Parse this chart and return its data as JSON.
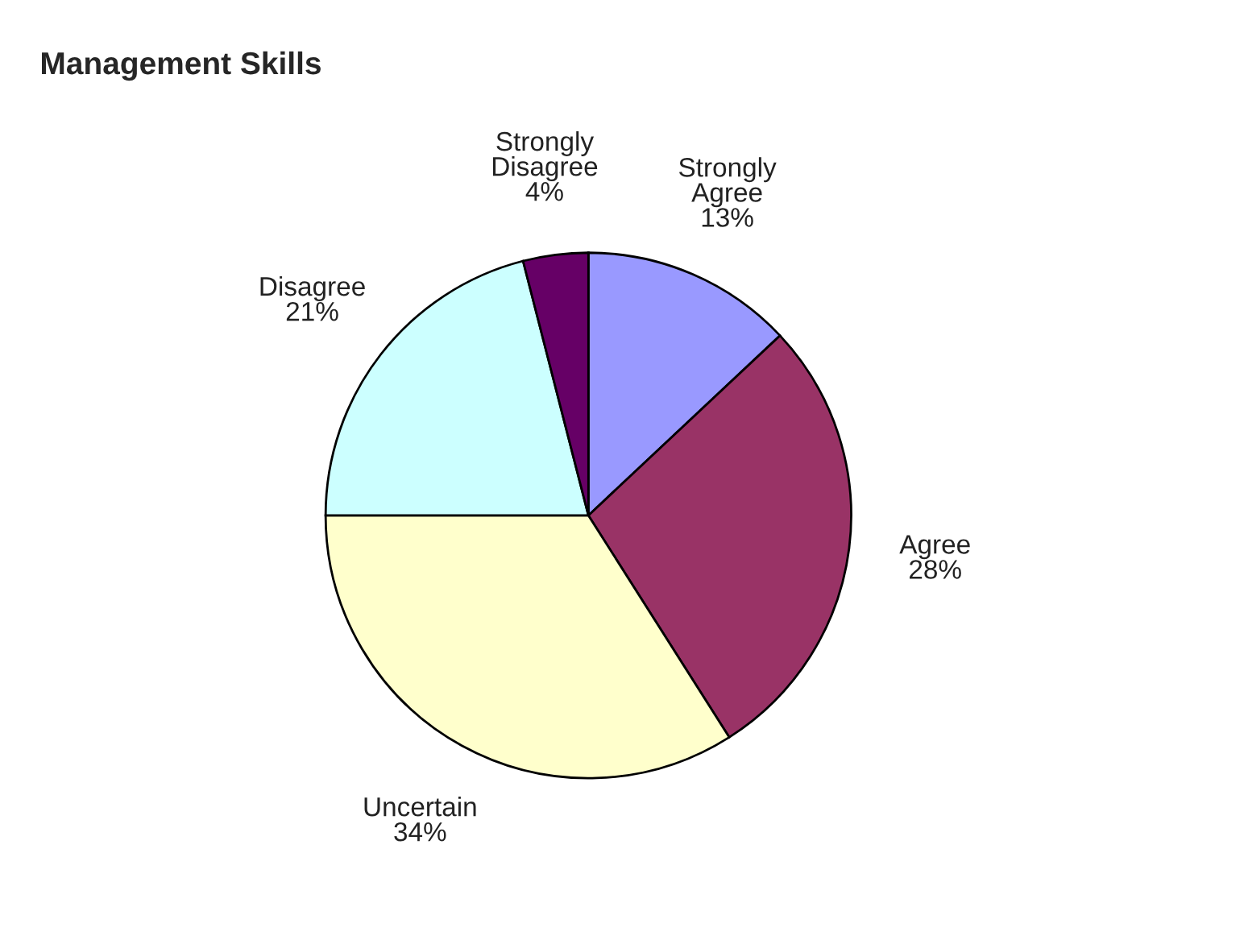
{
  "chart_data": {
    "type": "pie",
    "title": "Management Skills",
    "categories": [
      "Strongly Agree",
      "Agree",
      "Uncertain",
      "Disagree",
      "Strongly Disagree"
    ],
    "values": [
      13,
      28,
      34,
      21,
      4
    ],
    "value_labels": [
      "13%",
      "28%",
      "34%",
      "21%",
      "4%"
    ],
    "colors": [
      "#9999ff",
      "#993366",
      "#ffffcc",
      "#ccffff",
      "#660066"
    ],
    "legend": false
  }
}
